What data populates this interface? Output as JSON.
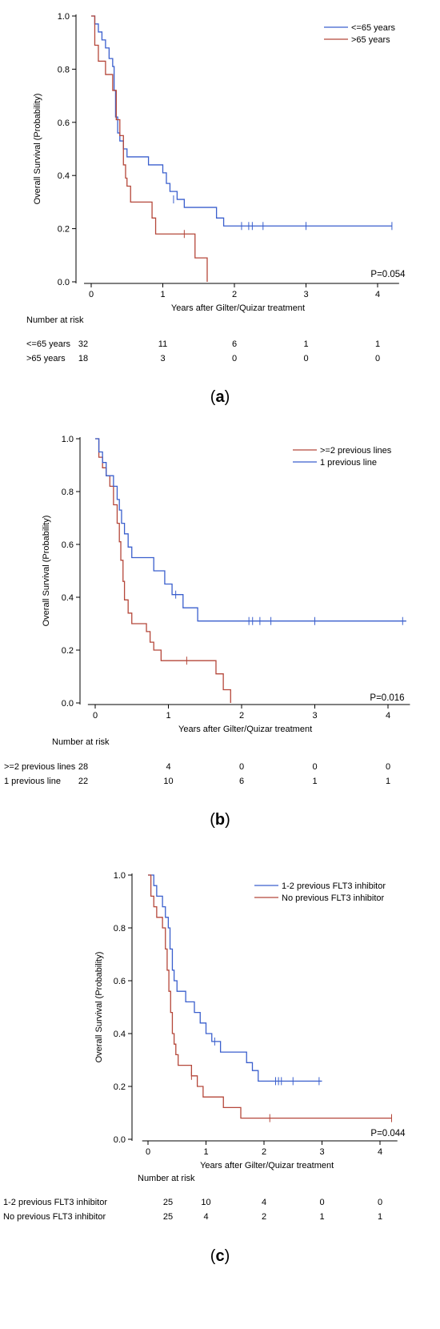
{
  "chart_data": [
    {
      "id": "a",
      "type": "line",
      "panel_label": "a",
      "ylabel": "Overall Survival (Probability)",
      "xlabel": "Years after Gilter/Quizar treatment",
      "x_ticks": [
        "0",
        "1",
        "2",
        "3",
        "4"
      ],
      "y_ticks": [
        "0.0",
        "0.2",
        "0.4",
        "0.6",
        "0.8",
        "1.0"
      ],
      "xlim": [
        -0.1,
        4.3
      ],
      "ylim": [
        0,
        1.0
      ],
      "legend_position": "top-right",
      "p_value": "P=0.054",
      "risk_title": "Number at risk",
      "risk_times": [
        0,
        1,
        2,
        3,
        4
      ],
      "series": [
        {
          "name": "<=65 years",
          "color": "#3a5fcd",
          "risk_label": "<=65 years",
          "at_risk": [
            "32",
            "11",
            "6",
            "1",
            "1"
          ],
          "steps": [
            [
              0,
              1.0
            ],
            [
              0.05,
              0.97
            ],
            [
              0.1,
              0.94
            ],
            [
              0.15,
              0.91
            ],
            [
              0.2,
              0.88
            ],
            [
              0.25,
              0.84
            ],
            [
              0.3,
              0.81
            ],
            [
              0.32,
              0.72
            ],
            [
              0.34,
              0.62
            ],
            [
              0.37,
              0.56
            ],
            [
              0.4,
              0.53
            ],
            [
              0.45,
              0.5
            ],
            [
              0.5,
              0.47
            ],
            [
              0.8,
              0.44
            ],
            [
              1.0,
              0.41
            ],
            [
              1.05,
              0.37
            ],
            [
              1.1,
              0.34
            ],
            [
              1.2,
              0.31
            ],
            [
              1.3,
              0.28
            ],
            [
              1.75,
              0.24
            ],
            [
              1.85,
              0.21
            ],
            [
              4.2,
              0.21
            ]
          ],
          "censor": [
            [
              1.15,
              0.31
            ],
            [
              2.1,
              0.21
            ],
            [
              2.2,
              0.21
            ],
            [
              2.25,
              0.21
            ],
            [
              2.4,
              0.21
            ],
            [
              3.0,
              0.21
            ],
            [
              4.2,
              0.21
            ]
          ]
        },
        {
          "name": ">65 years",
          "color": "#b5473a",
          "risk_label": ">65 years",
          "at_risk": [
            "18",
            "3",
            "0",
            "0",
            "0"
          ],
          "steps": [
            [
              0,
              1.0
            ],
            [
              0.05,
              0.89
            ],
            [
              0.1,
              0.83
            ],
            [
              0.2,
              0.78
            ],
            [
              0.3,
              0.72
            ],
            [
              0.35,
              0.61
            ],
            [
              0.4,
              0.55
            ],
            [
              0.45,
              0.44
            ],
            [
              0.48,
              0.39
            ],
            [
              0.5,
              0.36
            ],
            [
              0.55,
              0.3
            ],
            [
              0.8,
              0.3
            ],
            [
              0.85,
              0.24
            ],
            [
              0.9,
              0.18
            ],
            [
              1.35,
              0.18
            ],
            [
              1.45,
              0.09
            ],
            [
              1.6,
              0.09
            ],
            [
              1.62,
              0.0
            ]
          ],
          "censor": [
            [
              1.3,
              0.18
            ]
          ]
        }
      ]
    },
    {
      "id": "b",
      "type": "line",
      "panel_label": "b",
      "ylabel": "Overall Survival (Probability)",
      "xlabel": "Years after Gilter/Quizar treatment",
      "x_ticks": [
        "0",
        "1",
        "2",
        "3",
        "4"
      ],
      "y_ticks": [
        "0.0",
        "0.2",
        "0.4",
        "0.6",
        "0.8",
        "1.0"
      ],
      "xlim": [
        -0.1,
        4.3
      ],
      "ylim": [
        0,
        1.0
      ],
      "legend_position": "top-right",
      "p_value": "P=0.016",
      "risk_title": "Number at risk",
      "risk_times": [
        0,
        1,
        2,
        3,
        4
      ],
      "series": [
        {
          "name": ">=2 previous lines",
          "color": "#b5473a",
          "risk_label": ">=2 previous lines",
          "at_risk": [
            "28",
            "4",
            "0",
            "0",
            "0"
          ],
          "steps": [
            [
              0,
              1.0
            ],
            [
              0.05,
              0.93
            ],
            [
              0.1,
              0.89
            ],
            [
              0.15,
              0.86
            ],
            [
              0.2,
              0.82
            ],
            [
              0.25,
              0.75
            ],
            [
              0.3,
              0.68
            ],
            [
              0.33,
              0.61
            ],
            [
              0.35,
              0.54
            ],
            [
              0.38,
              0.46
            ],
            [
              0.4,
              0.39
            ],
            [
              0.45,
              0.34
            ],
            [
              0.5,
              0.3
            ],
            [
              0.7,
              0.27
            ],
            [
              0.75,
              0.23
            ],
            [
              0.8,
              0.2
            ],
            [
              0.9,
              0.16
            ],
            [
              1.6,
              0.16
            ],
            [
              1.65,
              0.11
            ],
            [
              1.75,
              0.05
            ],
            [
              1.85,
              0.0
            ]
          ],
          "censor": [
            [
              1.25,
              0.16
            ]
          ]
        },
        {
          "name": "1 previous line",
          "color": "#3a5fcd",
          "risk_label": "1 previous line",
          "at_risk": [
            "22",
            "10",
            "6",
            "1",
            "1"
          ],
          "steps": [
            [
              0,
              1.0
            ],
            [
              0.05,
              0.95
            ],
            [
              0.1,
              0.91
            ],
            [
              0.15,
              0.86
            ],
            [
              0.25,
              0.82
            ],
            [
              0.3,
              0.77
            ],
            [
              0.33,
              0.73
            ],
            [
              0.36,
              0.68
            ],
            [
              0.4,
              0.64
            ],
            [
              0.45,
              0.59
            ],
            [
              0.5,
              0.55
            ],
            [
              0.8,
              0.5
            ],
            [
              0.95,
              0.45
            ],
            [
              1.05,
              0.41
            ],
            [
              1.2,
              0.36
            ],
            [
              1.4,
              0.31
            ],
            [
              4.25,
              0.31
            ]
          ],
          "censor": [
            [
              1.1,
              0.41
            ],
            [
              2.1,
              0.31
            ],
            [
              2.15,
              0.31
            ],
            [
              2.25,
              0.31
            ],
            [
              2.4,
              0.31
            ],
            [
              3.0,
              0.31
            ],
            [
              4.2,
              0.31
            ]
          ]
        }
      ]
    },
    {
      "id": "c",
      "type": "line",
      "panel_label": "c",
      "ylabel": "Overall Survival (Probability)",
      "xlabel": "Years after Gilter/Quizar treatment",
      "x_ticks": [
        "0",
        "1",
        "2",
        "3",
        "4"
      ],
      "y_ticks": [
        "0.0",
        "0.2",
        "0.4",
        "0.6",
        "0.8",
        "1.0"
      ],
      "xlim": [
        -0.1,
        4.3
      ],
      "ylim": [
        0,
        1.0
      ],
      "legend_position": "top-right",
      "p_value": "P=0.044",
      "risk_title": "Number at risk",
      "risk_times": [
        0,
        1,
        2,
        3,
        4
      ],
      "series": [
        {
          "name": "1-2 previous FLT3 inhibitor",
          "color": "#3a5fcd",
          "risk_label": "1-2 previous FLT3 inhibitor",
          "at_risk": [
            "25",
            "10",
            "4",
            "0",
            "0"
          ],
          "steps": [
            [
              0,
              1.0
            ],
            [
              0.1,
              0.96
            ],
            [
              0.15,
              0.92
            ],
            [
              0.25,
              0.88
            ],
            [
              0.3,
              0.84
            ],
            [
              0.35,
              0.8
            ],
            [
              0.38,
              0.72
            ],
            [
              0.42,
              0.64
            ],
            [
              0.45,
              0.6
            ],
            [
              0.5,
              0.56
            ],
            [
              0.65,
              0.52
            ],
            [
              0.8,
              0.48
            ],
            [
              0.9,
              0.44
            ],
            [
              1.0,
              0.4
            ],
            [
              1.1,
              0.37
            ],
            [
              1.25,
              0.33
            ],
            [
              1.7,
              0.29
            ],
            [
              1.8,
              0.26
            ],
            [
              1.9,
              0.22
            ],
            [
              3.0,
              0.22
            ]
          ],
          "censor": [
            [
              1.15,
              0.37
            ],
            [
              2.2,
              0.22
            ],
            [
              2.25,
              0.22
            ],
            [
              2.3,
              0.22
            ],
            [
              2.5,
              0.22
            ],
            [
              2.95,
              0.22
            ]
          ]
        },
        {
          "name": "No previous FLT3 inhibitor",
          "color": "#b5473a",
          "risk_label": "No previous FLT3 inhibitor",
          "at_risk": [
            "25",
            "4",
            "2",
            "1",
            "1"
          ],
          "steps": [
            [
              0,
              1.0
            ],
            [
              0.05,
              0.92
            ],
            [
              0.1,
              0.88
            ],
            [
              0.15,
              0.84
            ],
            [
              0.25,
              0.8
            ],
            [
              0.3,
              0.72
            ],
            [
              0.33,
              0.64
            ],
            [
              0.36,
              0.56
            ],
            [
              0.39,
              0.48
            ],
            [
              0.42,
              0.4
            ],
            [
              0.45,
              0.36
            ],
            [
              0.48,
              0.32
            ],
            [
              0.52,
              0.28
            ],
            [
              0.75,
              0.24
            ],
            [
              0.85,
              0.2
            ],
            [
              0.95,
              0.16
            ],
            [
              1.3,
              0.12
            ],
            [
              1.6,
              0.08
            ],
            [
              4.2,
              0.08
            ]
          ],
          "censor": [
            [
              0.75,
              0.24
            ],
            [
              2.1,
              0.08
            ],
            [
              4.2,
              0.08
            ]
          ]
        }
      ]
    }
  ]
}
